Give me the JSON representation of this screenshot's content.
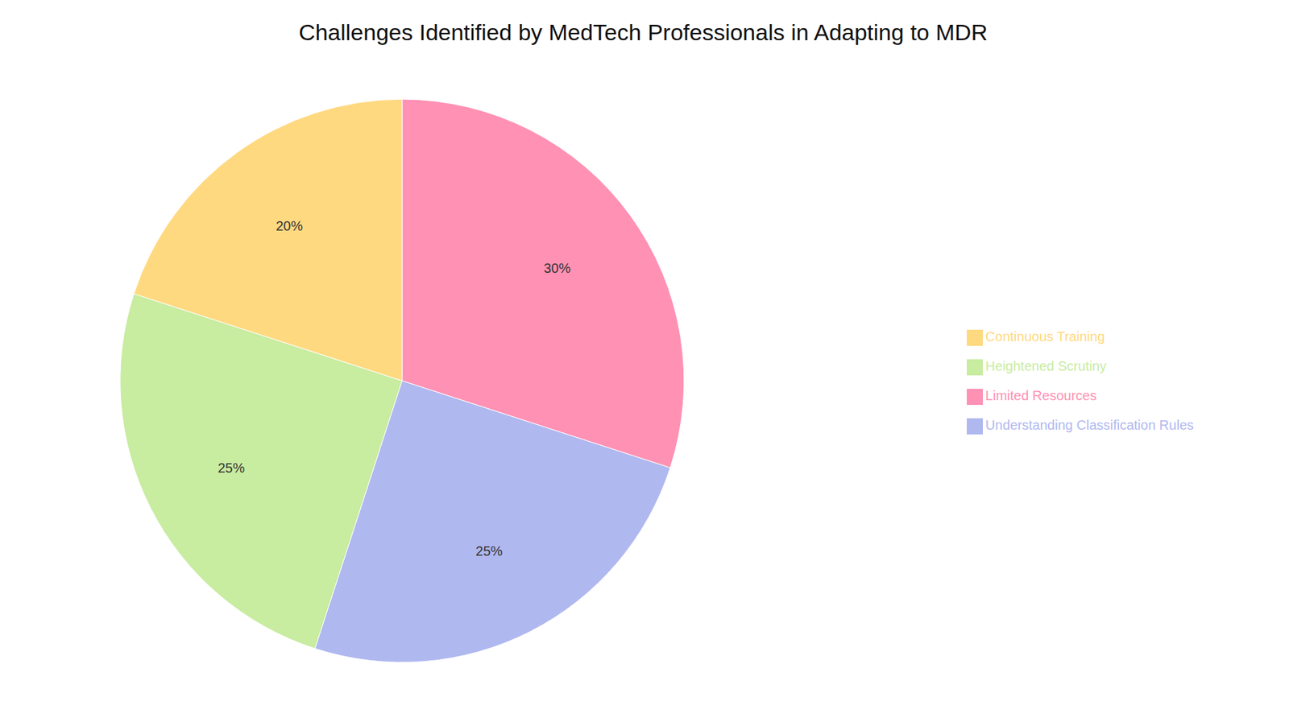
{
  "chart_data": {
    "type": "pie",
    "title": "Challenges Identified by MedTech Professionals in Adapting to MDR",
    "categories": [
      "Limited Resources",
      "Understanding Classification Rules",
      "Heightened Scrutiny",
      "Continuous Training"
    ],
    "values": [
      30,
      25,
      25,
      20
    ],
    "value_labels": [
      "30%",
      "25%",
      "25%",
      "20%"
    ],
    "colors": [
      "#FF91B4",
      "#B0B8F0",
      "#C8ECA0",
      "#FFD980"
    ],
    "data_labels": true,
    "legend": "right"
  }
}
